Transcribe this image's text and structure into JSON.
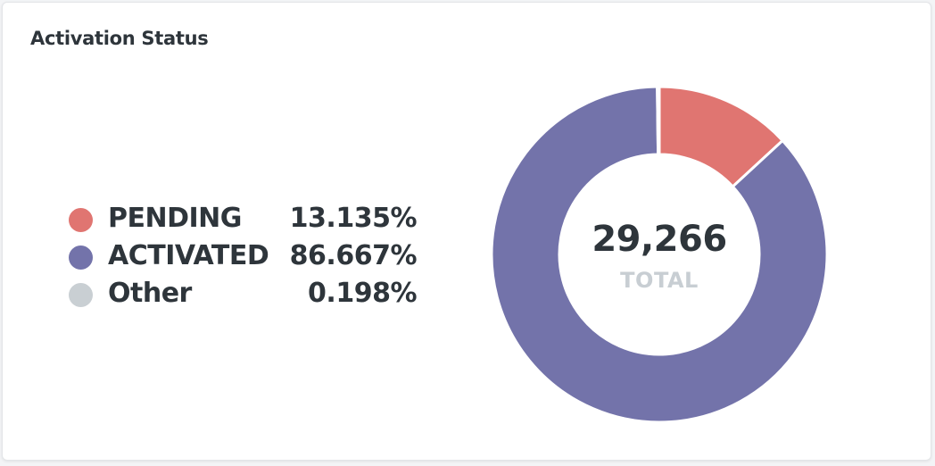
{
  "card": {
    "title": "Activation Status"
  },
  "center": {
    "total": "29,266",
    "caption": "TOTAL"
  },
  "legend": [
    {
      "label": "PENDING",
      "value": "13.135%",
      "color": "#e07571"
    },
    {
      "label": "ACTIVATED",
      "value": "86.667%",
      "color": "#7373aa"
    },
    {
      "label": "Other",
      "value": "0.198%",
      "color": "#c9cfd3"
    }
  ],
  "chart_data": {
    "type": "pie",
    "title": "Activation Status",
    "categories": [
      "PENDING",
      "ACTIVATED",
      "Other"
    ],
    "values": [
      13.135,
      86.667,
      0.198
    ],
    "colors": [
      "#e07571",
      "#7373aa",
      "#c9cfd3"
    ],
    "total": 29266,
    "donut": true,
    "legend_position": "left"
  }
}
